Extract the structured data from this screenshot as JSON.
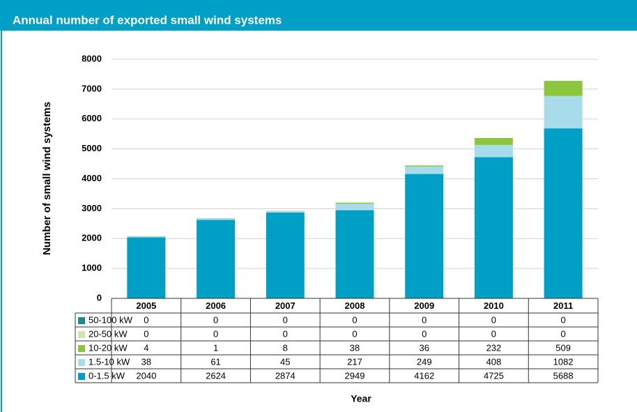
{
  "chart_data": {
    "type": "stacked_bar",
    "title": "Annual number of exported small wind systems",
    "y_label": "Number of small wind systems",
    "x_label": "Year",
    "categories": [
      "2005",
      "2006",
      "2007",
      "2008",
      "2009",
      "2010",
      "2011"
    ],
    "series": [
      {
        "name": "0-1.5 kW",
        "color": "#00a0c6",
        "values": [
          2040,
          2624,
          2874,
          2949,
          4162,
          4725,
          5688
        ]
      },
      {
        "name": "1.5-10 kW",
        "color": "#a9dcea",
        "values": [
          38,
          61,
          45,
          217,
          249,
          408,
          1082
        ]
      },
      {
        "name": "10-20 kW",
        "color": "#8cc63f",
        "values": [
          4,
          1,
          8,
          38,
          36,
          232,
          509
        ]
      },
      {
        "name": "20-50 kW",
        "color": "#cde6b1",
        "values": [
          0,
          0,
          0,
          0,
          0,
          0,
          0
        ]
      },
      {
        "name": "50-100 kW",
        "color": "#1a8c8a",
        "values": [
          0,
          0,
          0,
          0,
          0,
          0,
          0
        ]
      }
    ],
    "ylim": [
      0,
      8000
    ],
    "yticks": [
      0,
      1000,
      2000,
      3000,
      4000,
      5000,
      6000,
      7000,
      8000
    ],
    "grid": true
  }
}
